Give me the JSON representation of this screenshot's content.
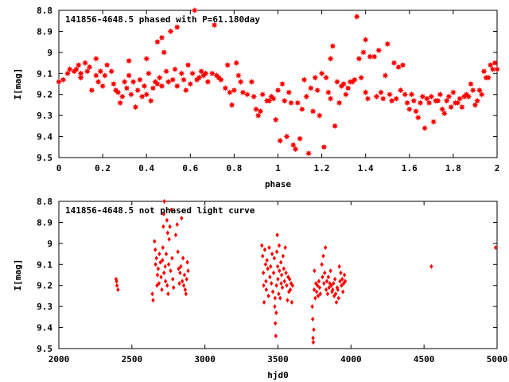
{
  "chart_data": [
    {
      "type": "scatter",
      "title": "141856-4648.5 phased with P=61.180day",
      "xlabel": "phase",
      "ylabel": "I[mag]",
      "xlim": [
        0,
        2
      ],
      "ylim": [
        8.8,
        9.5
      ],
      "y_inverted": true,
      "xticks": [
        "0",
        "0.2",
        "0.4",
        "0.6",
        "0.8",
        "1",
        "1.2",
        "1.4",
        "1.6",
        "1.8",
        "2"
      ],
      "yticks": [
        "8.8",
        "8.9",
        "9",
        "9.1",
        "9.2",
        "9.3",
        "9.4",
        "9.5"
      ],
      "marker": "star",
      "color": "#ff0000",
      "points": [
        [
          0.0,
          9.14
        ],
        [
          0.02,
          9.13
        ],
        [
          0.04,
          9.1
        ],
        [
          0.05,
          9.08
        ],
        [
          0.07,
          9.09
        ],
        [
          0.08,
          9.08
        ],
        [
          0.09,
          9.06
        ],
        [
          0.1,
          9.1
        ],
        [
          0.1,
          9.12
        ],
        [
          0.12,
          9.05
        ],
        [
          0.13,
          9.09
        ],
        [
          0.14,
          9.07
        ],
        [
          0.15,
          9.18
        ],
        [
          0.17,
          9.11
        ],
        [
          0.17,
          9.03
        ],
        [
          0.18,
          9.14
        ],
        [
          0.19,
          9.09
        ],
        [
          0.2,
          9.16
        ],
        [
          0.21,
          9.11
        ],
        [
          0.22,
          9.06
        ],
        [
          0.24,
          9.09
        ],
        [
          0.25,
          9.15
        ],
        [
          0.26,
          9.18
        ],
        [
          0.27,
          9.19
        ],
        [
          0.28,
          9.24
        ],
        [
          0.29,
          9.21
        ],
        [
          0.3,
          9.14
        ],
        [
          0.31,
          9.17
        ],
        [
          0.32,
          9.04
        ],
        [
          0.32,
          9.11
        ],
        [
          0.33,
          9.2
        ],
        [
          0.34,
          9.14
        ],
        [
          0.35,
          9.26
        ],
        [
          0.36,
          9.18
        ],
        [
          0.37,
          9.13
        ],
        [
          0.38,
          9.21
        ],
        [
          0.39,
          9.16
        ],
        [
          0.4,
          9.2
        ],
        [
          0.4,
          9.03
        ],
        [
          0.41,
          9.1
        ],
        [
          0.42,
          9.23
        ],
        [
          0.43,
          9.17
        ],
        [
          0.44,
          9.14
        ],
        [
          0.45,
          9.15
        ],
        [
          0.45,
          8.95
        ],
        [
          0.46,
          9.12
        ],
        [
          0.47,
          9.16
        ],
        [
          0.47,
          8.93
        ],
        [
          0.48,
          9.0
        ],
        [
          0.49,
          9.09
        ],
        [
          0.5,
          9.14
        ],
        [
          0.51,
          8.9
        ],
        [
          0.52,
          9.13
        ],
        [
          0.53,
          9.08
        ],
        [
          0.54,
          9.16
        ],
        [
          0.54,
          8.88
        ],
        [
          0.56,
          9.1
        ],
        [
          0.57,
          9.13
        ],
        [
          0.58,
          9.18
        ],
        [
          0.59,
          9.06
        ],
        [
          0.6,
          9.15
        ],
        [
          0.61,
          9.1
        ],
        [
          0.62,
          8.8
        ],
        [
          0.63,
          9.13
        ],
        [
          0.64,
          9.12
        ],
        [
          0.65,
          9.09
        ],
        [
          0.66,
          9.11
        ],
        [
          0.67,
          9.1
        ],
        [
          0.68,
          9.14
        ],
        [
          0.7,
          9.1
        ],
        [
          0.71,
          8.87
        ],
        [
          0.72,
          9.11
        ],
        [
          0.73,
          9.12
        ],
        [
          0.74,
          9.13
        ],
        [
          0.76,
          9.17
        ],
        [
          0.77,
          9.06
        ],
        [
          0.78,
          9.19
        ],
        [
          0.79,
          9.25
        ],
        [
          0.8,
          9.18
        ],
        [
          0.81,
          9.05
        ],
        [
          0.82,
          9.11
        ],
        [
          0.83,
          9.14
        ],
        [
          0.84,
          9.19
        ],
        [
          0.86,
          9.2
        ],
        [
          0.88,
          9.14
        ],
        [
          0.89,
          9.21
        ],
        [
          0.9,
          9.27
        ],
        [
          0.91,
          9.3
        ],
        [
          0.92,
          9.28
        ],
        [
          0.93,
          9.2
        ],
        [
          0.95,
          9.23
        ],
        [
          0.96,
          9.23
        ],
        [
          0.97,
          9.21
        ],
        [
          0.98,
          9.22
        ],
        [
          0.99,
          9.32
        ],
        [
          1.0,
          9.18
        ],
        [
          1.01,
          9.42
        ],
        [
          1.02,
          9.15
        ],
        [
          1.03,
          9.23
        ],
        [
          1.04,
          9.4
        ],
        [
          1.05,
          9.19
        ],
        [
          1.06,
          9.24
        ],
        [
          1.07,
          9.44
        ],
        [
          1.08,
          9.46
        ],
        [
          1.09,
          9.24
        ],
        [
          1.1,
          9.41
        ],
        [
          1.11,
          9.27
        ],
        [
          1.12,
          9.13
        ],
        [
          1.13,
          9.21
        ],
        [
          1.14,
          9.48
        ],
        [
          1.15,
          9.17
        ],
        [
          1.16,
          9.28
        ],
        [
          1.17,
          9.12
        ],
        [
          1.18,
          9.18
        ],
        [
          1.19,
          9.3
        ],
        [
          1.2,
          9.1
        ],
        [
          1.21,
          9.45
        ],
        [
          1.22,
          9.12
        ],
        [
          1.23,
          9.19
        ],
        [
          1.24,
          9.22
        ],
        [
          1.24,
          9.03
        ],
        [
          1.25,
          8.97
        ],
        [
          1.26,
          9.35
        ],
        [
          1.27,
          9.14
        ],
        [
          1.28,
          9.24
        ],
        [
          1.29,
          9.16
        ],
        [
          1.3,
          9.15
        ],
        [
          1.31,
          9.2
        ],
        [
          1.32,
          9.17
        ],
        [
          1.33,
          9.14
        ],
        [
          1.34,
          9.14
        ],
        [
          1.35,
          9.13
        ],
        [
          1.36,
          8.83
        ],
        [
          1.37,
          9.03
        ],
        [
          1.38,
          9.12
        ],
        [
          1.39,
          9.0
        ],
        [
          1.4,
          8.94
        ],
        [
          1.4,
          9.19
        ],
        [
          1.41,
          9.22
        ],
        [
          1.42,
          9.02
        ],
        [
          1.44,
          9.02
        ],
        [
          1.45,
          9.21
        ],
        [
          1.46,
          8.99
        ],
        [
          1.47,
          9.19
        ],
        [
          1.48,
          9.22
        ],
        [
          1.49,
          9.11
        ],
        [
          1.5,
          8.96
        ],
        [
          1.51,
          9.2
        ],
        [
          1.52,
          9.23
        ],
        [
          1.53,
          9.05
        ],
        [
          1.54,
          9.22
        ],
        [
          1.55,
          9.07
        ],
        [
          1.56,
          9.18
        ],
        [
          1.57,
          9.06
        ],
        [
          1.58,
          9.2
        ],
        [
          1.59,
          9.24
        ],
        [
          1.6,
          9.27
        ],
        [
          1.61,
          9.2
        ],
        [
          1.62,
          9.23
        ],
        [
          1.63,
          9.28
        ],
        [
          1.64,
          9.31
        ],
        [
          1.65,
          9.24
        ],
        [
          1.66,
          9.21
        ],
        [
          1.67,
          9.36
        ],
        [
          1.68,
          9.22
        ],
        [
          1.69,
          9.24
        ],
        [
          1.7,
          9.21
        ],
        [
          1.71,
          9.33
        ],
        [
          1.72,
          9.23
        ],
        [
          1.73,
          9.23
        ],
        [
          1.74,
          9.2
        ],
        [
          1.75,
          9.27
        ],
        [
          1.76,
          9.29
        ],
        [
          1.77,
          9.23
        ],
        [
          1.78,
          9.21
        ],
        [
          1.79,
          9.26
        ],
        [
          1.8,
          9.19
        ],
        [
          1.81,
          9.24
        ],
        [
          1.82,
          9.24
        ],
        [
          1.83,
          9.22
        ],
        [
          1.84,
          9.26
        ],
        [
          1.85,
          9.21
        ],
        [
          1.86,
          9.2
        ],
        [
          1.87,
          9.21
        ],
        [
          1.88,
          9.15
        ],
        [
          1.89,
          9.18
        ],
        [
          1.9,
          9.25
        ],
        [
          1.91,
          9.23
        ],
        [
          1.92,
          9.18
        ],
        [
          1.93,
          9.2
        ],
        [
          1.94,
          9.09
        ],
        [
          1.95,
          9.12
        ],
        [
          1.96,
          9.12
        ],
        [
          1.97,
          9.06
        ],
        [
          1.98,
          9.08
        ],
        [
          1.99,
          9.05
        ],
        [
          2.0,
          9.08
        ]
      ]
    },
    {
      "type": "scatter",
      "title": "141856-4648.5 not phased light curve",
      "xlabel": "hjd0",
      "ylabel": "I[mag]",
      "xlim": [
        2000,
        5000
      ],
      "ylim": [
        8.8,
        9.5
      ],
      "y_inverted": true,
      "xticks": [
        "2000",
        "2500",
        "3000",
        "3500",
        "4000",
        "4500",
        "5000"
      ],
      "yticks": [
        "8.8",
        "8.9",
        "9",
        "9.1",
        "9.2",
        "9.3",
        "9.4",
        "9.5"
      ],
      "marker": "diamond",
      "color": "#ff0000",
      "points": [
        [
          2392,
          9.17
        ],
        [
          2398,
          9.2
        ],
        [
          2405,
          9.22
        ],
        [
          2395,
          9.18
        ],
        [
          2640,
          9.24
        ],
        [
          2645,
          9.27
        ],
        [
          2655,
          8.99
        ],
        [
          2660,
          9.03
        ],
        [
          2662,
          9.1
        ],
        [
          2668,
          9.07
        ],
        [
          2672,
          9.2
        ],
        [
          2675,
          9.15
        ],
        [
          2680,
          9.12
        ],
        [
          2685,
          9.19
        ],
        [
          2688,
          9.05
        ],
        [
          2695,
          9.09
        ],
        [
          2700,
          9.16
        ],
        [
          2705,
          9.22
        ],
        [
          2710,
          9.08
        ],
        [
          2712,
          9.02
        ],
        [
          2715,
          8.92
        ],
        [
          2718,
          8.86
        ],
        [
          2720,
          9.14
        ],
        [
          2722,
          8.8
        ],
        [
          2728,
          9.11
        ],
        [
          2730,
          9.18
        ],
        [
          2735,
          9.05
        ],
        [
          2740,
          8.89
        ],
        [
          2742,
          9.2
        ],
        [
          2745,
          8.95
        ],
        [
          2748,
          9.24
        ],
        [
          2752,
          9.1
        ],
        [
          2755,
          8.98
        ],
        [
          2760,
          8.92
        ],
        [
          2765,
          9.13
        ],
        [
          2770,
          8.84
        ],
        [
          2775,
          9.07
        ],
        [
          2780,
          9.17
        ],
        [
          2785,
          9.21
        ],
        [
          2800,
          8.96
        ],
        [
          2810,
          8.91
        ],
        [
          2815,
          9.04
        ],
        [
          2820,
          9.12
        ],
        [
          2825,
          9.19
        ],
        [
          2830,
          9.14
        ],
        [
          2835,
          9.11
        ],
        [
          2840,
          8.88
        ],
        [
          2845,
          9.18
        ],
        [
          2850,
          9.07
        ],
        [
          2855,
          9.2
        ],
        [
          2860,
          9.15
        ],
        [
          2865,
          9.22
        ],
        [
          2870,
          9.24
        ],
        [
          2875,
          9.17
        ],
        [
          2880,
          9.09
        ],
        [
          2885,
          9.13
        ],
        [
          3390,
          9.01
        ],
        [
          3395,
          9.06
        ],
        [
          3400,
          9.14
        ],
        [
          3402,
          9.2
        ],
        [
          3405,
          9.28
        ],
        [
          3410,
          9.03
        ],
        [
          3415,
          9.1
        ],
        [
          3418,
          9.18
        ],
        [
          3420,
          9.22
        ],
        [
          3425,
          9.08
        ],
        [
          3430,
          9.12
        ],
        [
          3435,
          9.25
        ],
        [
          3440,
          9.02
        ],
        [
          3445,
          9.16
        ],
        [
          3450,
          9.11
        ],
        [
          3455,
          9.19
        ],
        [
          3460,
          9.05
        ],
        [
          3465,
          9.23
        ],
        [
          3470,
          9.14
        ],
        [
          3475,
          9.07
        ],
        [
          3478,
          9.3
        ],
        [
          3480,
          9.26
        ],
        [
          3482,
          9.38
        ],
        [
          3485,
          9.44
        ],
        [
          3488,
          9.33
        ],
        [
          3490,
          9.2
        ],
        [
          3492,
          9.04
        ],
        [
          3495,
          8.96
        ],
        [
          3498,
          9.11
        ],
        [
          3500,
          9.17
        ],
        [
          3505,
          9.24
        ],
        [
          3508,
          9.01
        ],
        [
          3510,
          9.13
        ],
        [
          3515,
          9.26
        ],
        [
          3520,
          9.09
        ],
        [
          3522,
          9.19
        ],
        [
          3525,
          9.15
        ],
        [
          3530,
          9.21
        ],
        [
          3535,
          9.06
        ],
        [
          3540,
          9.12
        ],
        [
          3545,
          9.18
        ],
        [
          3550,
          9.02
        ],
        [
          3555,
          9.14
        ],
        [
          3560,
          9.2
        ],
        [
          3565,
          9.27
        ],
        [
          3570,
          9.16
        ],
        [
          3575,
          9.23
        ],
        [
          3580,
          9.17
        ],
        [
          3585,
          9.22
        ],
        [
          3590,
          9.19
        ],
        [
          3595,
          9.28
        ],
        [
          3600,
          9.2
        ],
        [
          3735,
          9.3
        ],
        [
          3738,
          9.36
        ],
        [
          3740,
          9.45
        ],
        [
          3742,
          9.47
        ],
        [
          3745,
          9.41
        ],
        [
          3748,
          9.22
        ],
        [
          3750,
          9.13
        ],
        [
          3755,
          9.26
        ],
        [
          3760,
          9.19
        ],
        [
          3765,
          9.23
        ],
        [
          3770,
          9.2
        ],
        [
          3775,
          9.25
        ],
        [
          3780,
          9.18
        ],
        [
          3785,
          9.21
        ],
        [
          3790,
          9.24
        ],
        [
          3800,
          9.1
        ],
        [
          3805,
          9.16
        ],
        [
          3810,
          9.06
        ],
        [
          3815,
          9.19
        ],
        [
          3820,
          9.14
        ],
        [
          3825,
          9.02
        ],
        [
          3830,
          9.22
        ],
        [
          3835,
          9.18
        ],
        [
          3840,
          9.24
        ],
        [
          3845,
          9.16
        ],
        [
          3850,
          9.21
        ],
        [
          3855,
          9.19
        ],
        [
          3860,
          9.13
        ],
        [
          3865,
          9.2
        ],
        [
          3870,
          9.23
        ],
        [
          3875,
          9.22
        ],
        [
          3880,
          9.19
        ],
        [
          3885,
          9.25
        ],
        [
          3890,
          9.17
        ],
        [
          3895,
          9.24
        ],
        [
          3900,
          9.28
        ],
        [
          3905,
          9.21
        ],
        [
          3910,
          9.22
        ],
        [
          3915,
          9.26
        ],
        [
          3920,
          9.11
        ],
        [
          3925,
          9.18
        ],
        [
          3930,
          9.14
        ],
        [
          3935,
          9.2
        ],
        [
          3940,
          9.17
        ],
        [
          3945,
          9.23
        ],
        [
          3950,
          9.19
        ],
        [
          3955,
          9.15
        ],
        [
          3960,
          9.18
        ],
        [
          4550,
          9.11
        ],
        [
          4990,
          9.02
        ]
      ]
    }
  ]
}
